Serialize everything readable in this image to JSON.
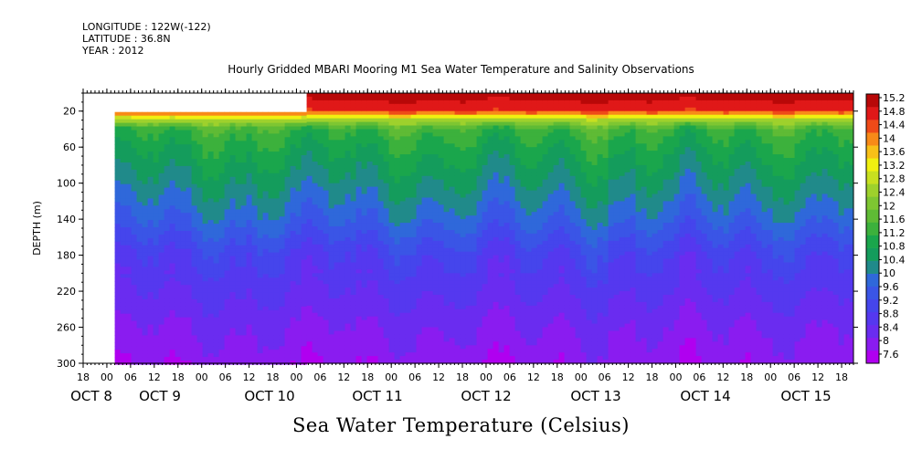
{
  "header": {
    "longitude": "LONGITUDE : 122W(-122)",
    "latitude": "LATITUDE : 36.8N",
    "year": "YEAR : 2012"
  },
  "chart_data": {
    "type": "heatmap",
    "title": "Hourly Gridded MBARI Mooring M1 Sea Water Temperature and Salinity Observations",
    "ylabel": "DEPTH (m)",
    "xlabel": "",
    "colorbar_title": "Sea Water Temperature (Celsius)",
    "ylim": [
      300,
      0
    ],
    "y_ticks": [
      20,
      60,
      100,
      140,
      180,
      220,
      260,
      300
    ],
    "x_hour_ticks": [
      "18",
      "00",
      "06",
      "12",
      "18",
      "00",
      "06",
      "12",
      "18",
      "00",
      "06",
      "12",
      "18",
      "00",
      "06",
      "12",
      "18",
      "00",
      "06",
      "12",
      "18",
      "00",
      "06",
      "12",
      "18",
      "00",
      "06",
      "12",
      "18",
      "00",
      "06",
      "12",
      "18"
    ],
    "x_day_labels": [
      "OCT  8",
      "OCT  9",
      "OCT 10",
      "OCT 11",
      "OCT 12",
      "OCT 13",
      "OCT 14",
      "OCT 15"
    ],
    "colorbar_levels": [
      "15.2",
      "14.8",
      "14.4",
      "14",
      "13.6",
      "13.2",
      "12.8",
      "12.4",
      "12",
      "11.6",
      "11.2",
      "10.8",
      "10.4",
      "10",
      "9.6",
      "9.2",
      "8.8",
      "8.4",
      "8",
      "7.6"
    ],
    "colorbar_min": 7.6,
    "colorbar_max": 15.2,
    "data_start": "Oct 8 02:00",
    "shallow_data_start": "Oct 10 02:00",
    "profile": [
      {
        "depth": 5,
        "temp": 15.0
      },
      {
        "depth": 20,
        "temp": 14.6
      },
      {
        "depth": 30,
        "temp": 12.6
      },
      {
        "depth": 40,
        "temp": 11.4
      },
      {
        "depth": 60,
        "temp": 11.0
      },
      {
        "depth": 100,
        "temp": 10.4
      },
      {
        "depth": 140,
        "temp": 9.8
      },
      {
        "depth": 180,
        "temp": 9.0
      },
      {
        "depth": 220,
        "temp": 8.6
      },
      {
        "depth": 260,
        "temp": 8.2
      },
      {
        "depth": 300,
        "temp": 7.9
      }
    ]
  }
}
